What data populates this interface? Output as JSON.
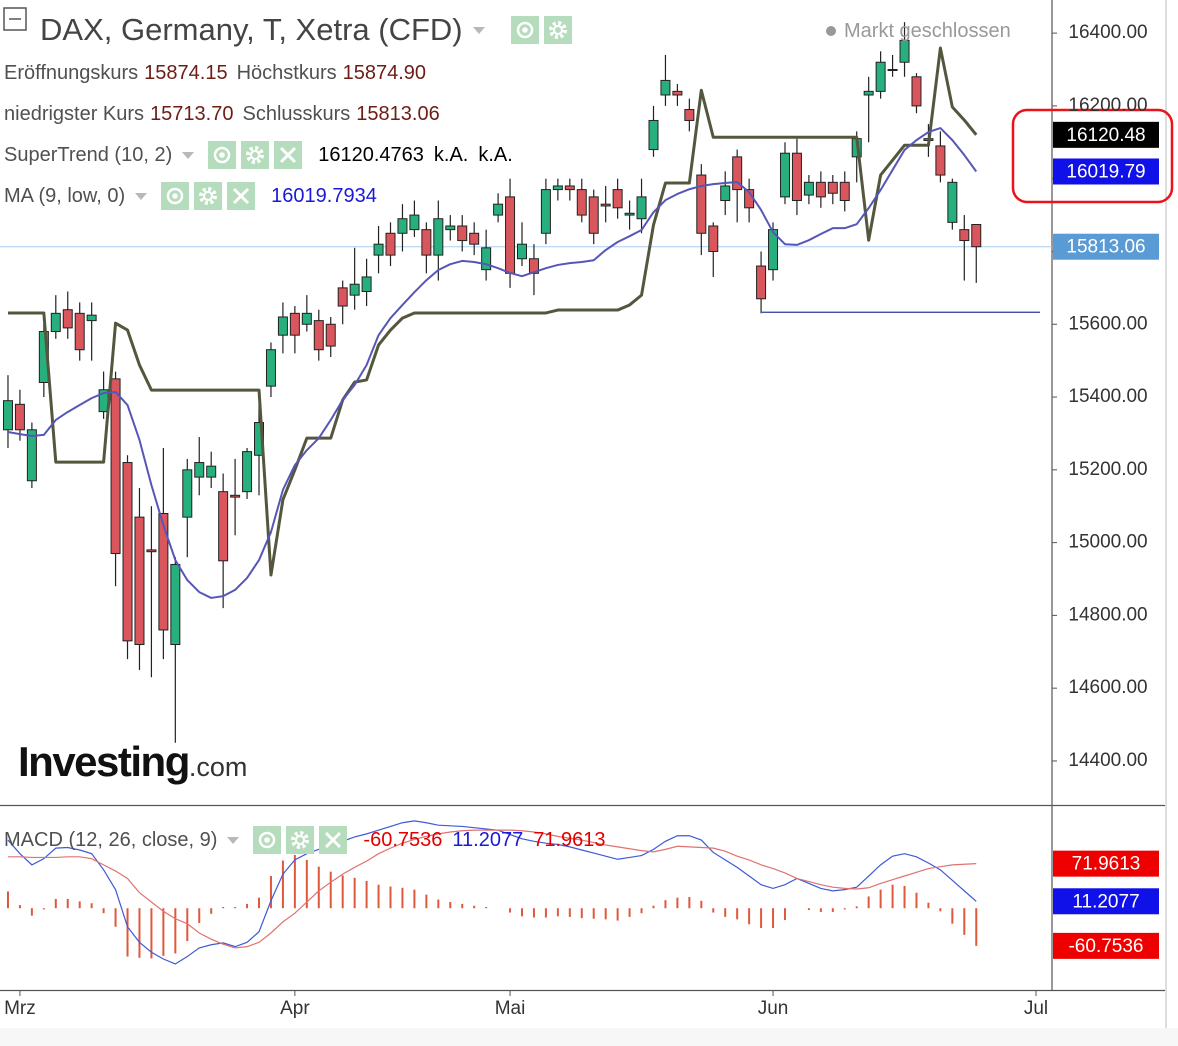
{
  "header": {
    "title": "DAX, Germany, T, Xetra (CFD)",
    "status": "Markt geschlossen",
    "ohlc": [
      {
        "label": "Eröffnungskurs",
        "value": "15874.15"
      },
      {
        "label": "Höchstkurs",
        "value": "15874.90"
      },
      {
        "label": "niedrigster Kurs",
        "value": "15713.70"
      },
      {
        "label": "Schlusskurs",
        "value": "15813.06"
      }
    ],
    "logo": {
      "name": "Investing",
      "suffix": ".com"
    }
  },
  "chart_data": [
    {
      "type": "candlestick",
      "categories": [
        null,
        "Mrz",
        null,
        null,
        null,
        null,
        null,
        null,
        null,
        null,
        null,
        null,
        null,
        null,
        null,
        null,
        null,
        null,
        null,
        null,
        null,
        null,
        null,
        null,
        "Apr",
        null,
        null,
        null,
        null,
        null,
        null,
        null,
        null,
        null,
        null,
        null,
        null,
        null,
        null,
        null,
        null,
        null,
        "Mai",
        null,
        null,
        null,
        null,
        null,
        null,
        null,
        null,
        null,
        null,
        null,
        null,
        null,
        null,
        null,
        null,
        null,
        null,
        null,
        null,
        null,
        "Jun",
        null,
        null,
        null,
        null,
        null,
        null,
        null,
        null,
        null,
        null,
        null,
        null,
        null,
        null,
        null,
        null,
        null,
        null,
        null,
        null,
        null,
        "Jul"
      ],
      "open": [
        15310,
        15380,
        15170,
        15440,
        15580,
        15640,
        15630,
        15610,
        15360,
        15450,
        15220,
        15070,
        14980,
        15080,
        14720,
        15070,
        15180,
        15180,
        15140,
        15130,
        15140,
        15240,
        15430,
        15570,
        15630,
        15600,
        15610,
        15600,
        15700,
        15680,
        15690,
        15790,
        15850,
        15850,
        15860,
        15860,
        15790,
        15860,
        15870,
        15850,
        15750,
        15900,
        15950,
        15780,
        15780,
        15850,
        15970,
        15980,
        15970,
        15950,
        15930,
        15970,
        15900,
        15890,
        16080,
        16230,
        16240,
        16190,
        16010,
        15870,
        15940,
        16060,
        15970,
        15760,
        15750,
        15950,
        16070,
        15955,
        15990,
        15990,
        15990,
        16060,
        16230,
        16240,
        16300,
        16320,
        16280,
        16110,
        16090,
        15880,
        15860,
        15874.15,
        null,
        null,
        null,
        null,
        null
      ],
      "high": [
        15460,
        15420,
        15330,
        15600,
        15680,
        15690,
        15660,
        15660,
        15470,
        15470,
        15240,
        15150,
        15100,
        15260,
        14960,
        15230,
        15290,
        15250,
        15190,
        15230,
        15260,
        15380,
        15550,
        15660,
        15650,
        15680,
        15640,
        15620,
        15720,
        15810,
        15780,
        15870,
        15880,
        15930,
        15940,
        15880,
        15940,
        15900,
        15900,
        15880,
        15860,
        15960,
        16000,
        15880,
        15820,
        16000,
        16000,
        16000,
        16000,
        15970,
        15980,
        16000,
        15940,
        16000,
        16200,
        16340,
        16260,
        16220,
        16040,
        15880,
        16020,
        16080,
        16000,
        15800,
        15880,
        16100,
        16110,
        16010,
        16020,
        16010,
        16020,
        16130,
        16280,
        16350,
        16340,
        16430,
        16290,
        16150,
        16130,
        16000,
        15900,
        15874.9,
        null,
        null,
        null,
        null,
        null
      ],
      "low": [
        15260,
        15280,
        15150,
        15400,
        15560,
        15560,
        15500,
        15500,
        15340,
        14880,
        14680,
        14650,
        14630,
        14680,
        14450,
        14960,
        15130,
        15150,
        14820,
        15020,
        15120,
        15130,
        15400,
        15520,
        15520,
        15580,
        15500,
        15510,
        15600,
        15640,
        15650,
        15740,
        15760,
        15800,
        15840,
        15740,
        15720,
        15830,
        15800,
        15790,
        15720,
        15880,
        15700,
        15760,
        15680,
        15820,
        15940,
        15940,
        15880,
        15820,
        15880,
        15890,
        15860,
        15850,
        16060,
        16200,
        16200,
        16130,
        15790,
        15730,
        15900,
        15880,
        15880,
        15630,
        15720,
        15930,
        15900,
        15930,
        15920,
        15930,
        15910,
        15990,
        16100,
        16220,
        16280,
        16280,
        16180,
        16060,
        15990,
        15860,
        15720,
        15713.7,
        null,
        null,
        null,
        null,
        null
      ],
      "close": [
        15390,
        15310,
        15310,
        15580,
        15630,
        15590,
        15530,
        15625,
        15420,
        14970,
        14730,
        14720,
        14975,
        14760,
        14940,
        15200,
        15220,
        15210,
        14950,
        15125,
        15250,
        15330,
        15530,
        15620,
        15570,
        15630,
        15530,
        15540,
        15650,
        15710,
        15730,
        15820,
        15790,
        15890,
        15900,
        15790,
        15890,
        15870,
        15830,
        15820,
        15810,
        15930,
        15740,
        15820,
        15740,
        15970,
        15980,
        15970,
        15900,
        15850,
        15925,
        15920,
        15905,
        15950,
        16160,
        16270,
        16230,
        16160,
        15850,
        15800,
        15980,
        15970,
        15920,
        15670,
        15860,
        16070,
        15940,
        15990,
        15950,
        15960,
        15940,
        16110,
        16240,
        16320,
        16300,
        16380,
        16200,
        16105,
        16010,
        15990,
        15830,
        15813.06,
        null,
        null,
        null,
        null,
        null
      ],
      "up_color": "#27b07e",
      "down_color": "#d9565c",
      "ylim": [
        14279,
        16491
      ],
      "yticks": [
        {
          "value": 14400,
          "label": "14400.00"
        },
        {
          "value": 14600,
          "label": "14600.00"
        },
        {
          "value": 14800,
          "label": "14800.00"
        },
        {
          "value": 15000,
          "label": "15000.00"
        },
        {
          "value": 15200,
          "label": "15200.00"
        },
        {
          "value": 15400,
          "label": "15400.00"
        },
        {
          "value": 15600,
          "label": "15600.00"
        },
        {
          "value": 15800,
          "label": "15800.00"
        },
        {
          "value": 16000,
          "label": "16000.00"
        },
        {
          "value": 16200,
          "label": "16200.00"
        },
        {
          "value": 16400,
          "label": "16400.00"
        }
      ],
      "last_close_label": "15813.06",
      "last_close_color": "#5b9bd5",
      "reference_lines": [
        {
          "value": 15633,
          "color": "#2b3a9c"
        }
      ],
      "series": [
        {
          "name": "SuperTrend (10, 2)",
          "color": "#55563e",
          "badge_color": "#000000",
          "legend_values": [
            "16120.4763",
            "k.A.",
            "k.A."
          ],
          "last_label": "16120.48",
          "values": [
            15631,
            15631,
            15631,
            15631,
            15221,
            15221,
            15221,
            15221,
            15221,
            15603,
            15584,
            15488,
            15419,
            15419,
            15419,
            15419,
            15419,
            15419,
            15419,
            15419,
            15419,
            15419,
            14911,
            15118,
            15200,
            15287,
            15287,
            15287,
            15392,
            15441,
            15447,
            15543,
            15584,
            15617,
            15631,
            15631,
            15631,
            15631,
            15631,
            15631,
            15631,
            15631,
            15631,
            15631,
            15631,
            15631,
            15639,
            15639,
            15639,
            15639,
            15639,
            15639,
            15653,
            15680,
            15873,
            15988,
            15988,
            15988,
            16243,
            16114,
            16114,
            16114,
            16114,
            16114,
            16114,
            16114,
            16114,
            16114,
            16114,
            16114,
            16114,
            16114,
            15831,
            16010,
            16051,
            16092,
            16092,
            16092,
            16359,
            16197,
            16161,
            16120.4763,
            null,
            null,
            null,
            null,
            null
          ]
        },
        {
          "name": "MA (9, low, 0)",
          "color": "#5656b8",
          "badge_color": "#1010e8",
          "legend_values": [
            "16019.7934"
          ],
          "last_label": "16019.79",
          "values": [
            15304,
            15298,
            15293,
            15296,
            15337,
            15359,
            15378,
            15397,
            15411,
            15414,
            15378,
            15282,
            15158,
            15048,
            14952,
            14897,
            14864,
            14848,
            14853,
            14870,
            14903,
            14952,
            15029,
            15145,
            15213,
            15254,
            15287,
            15337,
            15392,
            15433,
            15488,
            15570,
            15617,
            15653,
            15688,
            15721,
            15749,
            15765,
            15774,
            15771,
            15765,
            15754,
            15741,
            15732,
            15743,
            15754,
            15763,
            15768,
            15771,
            15776,
            15804,
            15826,
            15842,
            15859,
            15908,
            15941,
            15958,
            15971,
            15980,
            15985,
            15988,
            15991,
            15963,
            15914,
            15853,
            15820,
            15818,
            15831,
            15848,
            15864,
            15864,
            15875,
            15919,
            15969,
            16024,
            16079,
            16106,
            16128,
            16139,
            16106,
            16065,
            16019.7934,
            null,
            null,
            null,
            null,
            null
          ]
        }
      ]
    },
    {
      "type": "macd",
      "title": "MACD (12, 26, close, 9)",
      "ylim": [
        -132,
        165
      ],
      "series": [
        {
          "type": "histogram",
          "color": "#e0583c",
          "badge_color": "#ee0000",
          "legend_value": "-60.7536",
          "last_label": "-60.7536",
          "values": [
            27,
            5,
            -12,
            -2,
            15,
            15,
            11,
            8,
            -8,
            -30,
            -78,
            -80,
            -81,
            -77,
            -73,
            -53,
            -24,
            -9,
            2,
            2,
            7,
            17,
            52,
            77,
            86,
            78,
            67,
            59,
            53,
            49,
            44,
            38,
            35,
            33,
            30,
            22,
            14,
            10,
            7,
            4,
            2,
            0,
            -7,
            -13,
            -15,
            -15,
            -13,
            -14,
            -16,
            -17,
            -18,
            -20,
            -14,
            -8,
            4,
            13,
            17,
            18,
            12,
            -7,
            -14,
            -18,
            -26,
            -32,
            -32,
            -19,
            0,
            -3,
            -6,
            -6,
            -2,
            3,
            19,
            30,
            38,
            36,
            25,
            9,
            -5,
            -25,
            -43,
            -60.7536,
            null,
            null,
            null,
            null,
            null
          ]
        },
        {
          "type": "line",
          "color": "#3d5ad6",
          "badge_color": "#1010e8",
          "legend_value": "11.2077",
          "last_label": "11.2077",
          "values": [
            110,
            88,
            70,
            80,
            97,
            98,
            94,
            88,
            62,
            30,
            -30,
            -55,
            -71,
            -82,
            -90,
            -78,
            -64,
            -59,
            -56,
            -62,
            -55,
            -38,
            12,
            55,
            78,
            88,
            95,
            101,
            108,
            115,
            120,
            126,
            132,
            138,
            141,
            138,
            134,
            133,
            132,
            130,
            128,
            126,
            119,
            112,
            108,
            105,
            103,
            99,
            94,
            89,
            84,
            79,
            82,
            85,
            95,
            108,
            117,
            117,
            110,
            90,
            78,
            66,
            52,
            38,
            32,
            38,
            48,
            40,
            32,
            28,
            30,
            34,
            52,
            70,
            84,
            88,
            83,
            73,
            62,
            45,
            28,
            11.2077,
            null,
            null,
            null,
            null,
            null
          ]
        },
        {
          "type": "line",
          "color": "#e07272",
          "badge_color": "#ee0000",
          "legend_value": "71.9613",
          "last_label": "71.9613",
          "values": [
            83,
            83,
            82,
            82,
            82,
            83,
            83,
            80,
            70,
            60,
            48,
            25,
            10,
            -5,
            -17,
            -25,
            -40,
            -50,
            -58,
            -64,
            -62,
            -55,
            -40,
            -22,
            -8,
            10,
            28,
            42,
            55,
            66,
            76,
            88,
            97,
            105,
            111,
            116,
            120,
            123,
            125,
            126,
            126,
            126,
            126,
            125,
            123,
            120,
            116,
            113,
            110,
            106,
            102,
            99,
            96,
            93,
            91,
            95,
            100,
            99,
            98,
            97,
            92,
            84,
            78,
            70,
            64,
            57,
            48,
            43,
            38,
            34,
            32,
            31,
            33,
            40,
            46,
            52,
            58,
            64,
            67,
            70,
            71,
            71.9613,
            null,
            null,
            null,
            null,
            null
          ]
        }
      ]
    }
  ]
}
